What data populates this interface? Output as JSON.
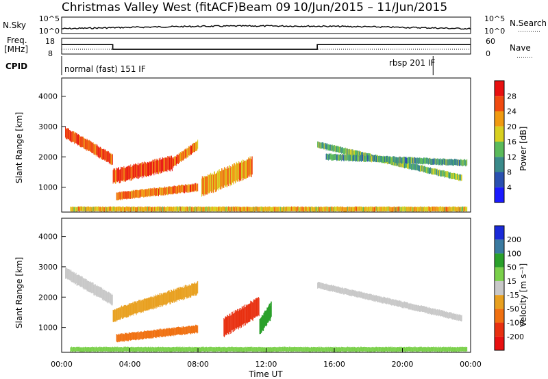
{
  "header": {
    "title": "Christmas Valley West (fitACF)",
    "beam": "Beam 09",
    "date_range": "10/Jun/2015 – 11/Jun/2015"
  },
  "noise_panel": {
    "left_label": "N.Sky",
    "right_label": "N.Search",
    "left_ticks": [
      "10^5",
      "10^0"
    ],
    "right_ticks": [
      "10^5",
      "10^0"
    ]
  },
  "freq_panel": {
    "left_label_1": "Freq.",
    "left_label_2": "[MHz]",
    "right_label": "Nave",
    "left_ticks": [
      "18",
      "8"
    ],
    "right_ticks": [
      "60",
      "0"
    ]
  },
  "cpid": {
    "label": "CPID",
    "mode_1": "normal (fast) 151 IF",
    "mode_2": "rbsp 201 IF"
  },
  "axes": {
    "ylabel": "Slant Range [km]",
    "xlabel": "Time UT",
    "xticks": [
      "00:00",
      "04:00",
      "08:00",
      "12:00",
      "16:00",
      "20:00",
      "00:00"
    ],
    "yticks": [
      "1000",
      "2000",
      "3000",
      "4000"
    ]
  },
  "power_scale": {
    "label": "Power [dB]",
    "ticks": [
      "4",
      "8",
      "12",
      "16",
      "20",
      "24",
      "28"
    ],
    "colors": [
      "#1a1aff",
      "#2a50b0",
      "#3a8a8a",
      "#5aba5a",
      "#d8d020",
      "#f09a10",
      "#f04a10",
      "#e81010"
    ]
  },
  "velocity_scale": {
    "label": "Velocity [m s⁻¹]",
    "ticks": [
      "200",
      "100",
      "50",
      "15",
      "-15",
      "-50",
      "-100",
      "-200"
    ],
    "colors": [
      "#1a2ad8",
      "#3a7aa0",
      "#2aa02a",
      "#7ad04a",
      "#c8c8c8",
      "#e8a020",
      "#f07010",
      "#e83010",
      "#e81010"
    ]
  },
  "chart_data": {
    "type": "heatmap",
    "title": "Christmas Valley West (fitACF)",
    "xlabel": "Time UT",
    "ylabel": "Slant Range [km]",
    "x_range_hours": [
      0,
      24
    ],
    "y_range_km": [
      180,
      4600
    ],
    "cpid_segments": [
      {
        "label": "normal (fast) 151 IF",
        "start_hour": 0,
        "end_hour": 21.8
      },
      {
        "label": "rbsp 201 IF",
        "start_hour": 21.8,
        "end_hour": 24
      }
    ],
    "frequency_mhz": [
      {
        "start_hour": 0,
        "end_hour": 3,
        "value": 14
      },
      {
        "start_hour": 3,
        "end_hour": 15,
        "value": 11
      },
      {
        "start_hour": 15,
        "end_hour": 24,
        "value": 14
      }
    ],
    "power_panel": {
      "label": "Power [dB]",
      "range": [
        0,
        32
      ],
      "features": [
        {
          "start_hour": 0.2,
          "end_hour": 3.0,
          "range_start_km": 2800,
          "range_end_km": 1900,
          "width_km": 350,
          "value": 26
        },
        {
          "start_hour": 3.0,
          "end_hour": 6.5,
          "range_start_km": 1350,
          "range_end_km": 1800,
          "width_km": 450,
          "value": 28
        },
        {
          "start_hour": 6.5,
          "end_hour": 8.0,
          "range_start_km": 1800,
          "range_end_km": 2400,
          "width_km": 300,
          "value": 24
        },
        {
          "start_hour": 3.2,
          "end_hour": 8.0,
          "range_start_km": 700,
          "range_end_km": 1000,
          "width_km": 250,
          "value": 24
        },
        {
          "start_hour": 8.2,
          "end_hour": 11.2,
          "range_start_km": 1000,
          "range_end_km": 1700,
          "width_km": 600,
          "value": 22
        },
        {
          "start_hour": 15.0,
          "end_hour": 23.5,
          "range_start_km": 2400,
          "range_end_km": 1300,
          "width_km": 200,
          "value": 14
        },
        {
          "start_hour": 15.5,
          "end_hour": 23.8,
          "range_start_km": 2000,
          "range_end_km": 1800,
          "width_km": 200,
          "value": 12
        },
        {
          "start_hour": 0.5,
          "end_hour": 23.8,
          "range_start_km": 280,
          "range_end_km": 280,
          "width_km": 150,
          "value": 20
        }
      ]
    },
    "velocity_panel": {
      "label": "Velocity [m s⁻¹]",
      "range": [
        -200,
        200
      ],
      "features": [
        {
          "start_hour": 0.2,
          "end_hour": 3.0,
          "range_start_km": 2800,
          "range_end_km": 1900,
          "width_km": 350,
          "value": 0
        },
        {
          "start_hour": 3.0,
          "end_hour": 8.0,
          "range_start_km": 1400,
          "range_end_km": 2300,
          "width_km": 400,
          "value": -40
        },
        {
          "start_hour": 3.2,
          "end_hour": 8.0,
          "range_start_km": 650,
          "range_end_km": 950,
          "width_km": 250,
          "value": -60
        },
        {
          "start_hour": 9.5,
          "end_hour": 11.6,
          "range_start_km": 1000,
          "range_end_km": 1700,
          "width_km": 600,
          "value": -180
        },
        {
          "start_hour": 11.6,
          "end_hour": 12.3,
          "range_start_km": 1000,
          "range_end_km": 1600,
          "width_km": 500,
          "value": 60
        },
        {
          "start_hour": 15.0,
          "end_hour": 23.5,
          "range_start_km": 2400,
          "range_end_km": 1300,
          "width_km": 200,
          "value": 0
        },
        {
          "start_hour": 0.5,
          "end_hour": 23.8,
          "range_start_km": 280,
          "range_end_km": 280,
          "width_km": 150,
          "value": 30
        }
      ]
    }
  }
}
